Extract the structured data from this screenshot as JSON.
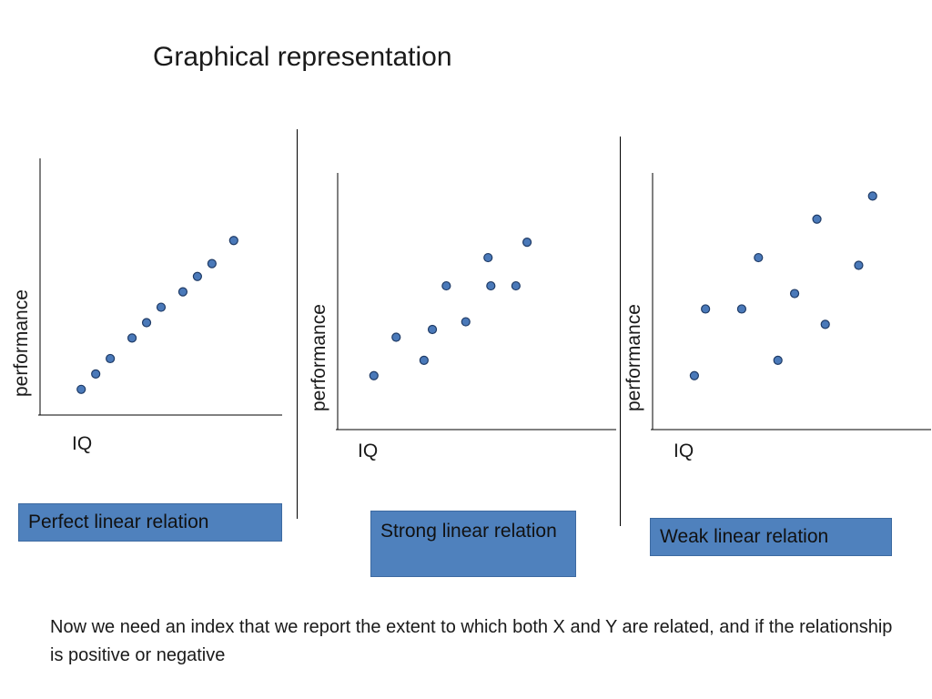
{
  "title": "Graphical representation",
  "footer": "Now we need an index that we report the extent to which both X and Y are related, and if the relationship is positive or negative",
  "colors": {
    "dot_fill": "#4a79b9",
    "dot_stroke": "#1f3b66",
    "caption_bg": "#4f81bd"
  },
  "chart_data": [
    {
      "type": "scatter",
      "xlabel": "IQ",
      "ylabel": "performance",
      "caption": "Perfect linear relation",
      "xlim": [
        0,
        100
      ],
      "ylim": [
        0,
        100
      ],
      "points": [
        {
          "x": 17,
          "y": 10
        },
        {
          "x": 23,
          "y": 16
        },
        {
          "x": 29,
          "y": 22
        },
        {
          "x": 38,
          "y": 30
        },
        {
          "x": 44,
          "y": 36
        },
        {
          "x": 50,
          "y": 42
        },
        {
          "x": 59,
          "y": 48
        },
        {
          "x": 65,
          "y": 54
        },
        {
          "x": 71,
          "y": 59
        },
        {
          "x": 80,
          "y": 68
        }
      ]
    },
    {
      "type": "scatter",
      "xlabel": "IQ",
      "ylabel": "performance",
      "caption": "Strong linear relation",
      "xlim": [
        0,
        100
      ],
      "ylim": [
        0,
        100
      ],
      "points": [
        {
          "x": 13,
          "y": 21
        },
        {
          "x": 21,
          "y": 36
        },
        {
          "x": 31,
          "y": 27
        },
        {
          "x": 34,
          "y": 39
        },
        {
          "x": 39,
          "y": 56
        },
        {
          "x": 46,
          "y": 42
        },
        {
          "x": 54,
          "y": 67
        },
        {
          "x": 55,
          "y": 56
        },
        {
          "x": 64,
          "y": 56
        },
        {
          "x": 68,
          "y": 73
        }
      ]
    },
    {
      "type": "scatter",
      "xlabel": "IQ",
      "ylabel": "performance",
      "caption": "Weak linear relation",
      "xlim": [
        0,
        100
      ],
      "ylim": [
        0,
        100
      ],
      "points": [
        {
          "x": 15,
          "y": 21
        },
        {
          "x": 19,
          "y": 47
        },
        {
          "x": 32,
          "y": 47
        },
        {
          "x": 38,
          "y": 67
        },
        {
          "x": 45,
          "y": 27
        },
        {
          "x": 51,
          "y": 53
        },
        {
          "x": 59,
          "y": 82
        },
        {
          "x": 62,
          "y": 41
        },
        {
          "x": 74,
          "y": 64
        },
        {
          "x": 79,
          "y": 91
        }
      ]
    }
  ]
}
